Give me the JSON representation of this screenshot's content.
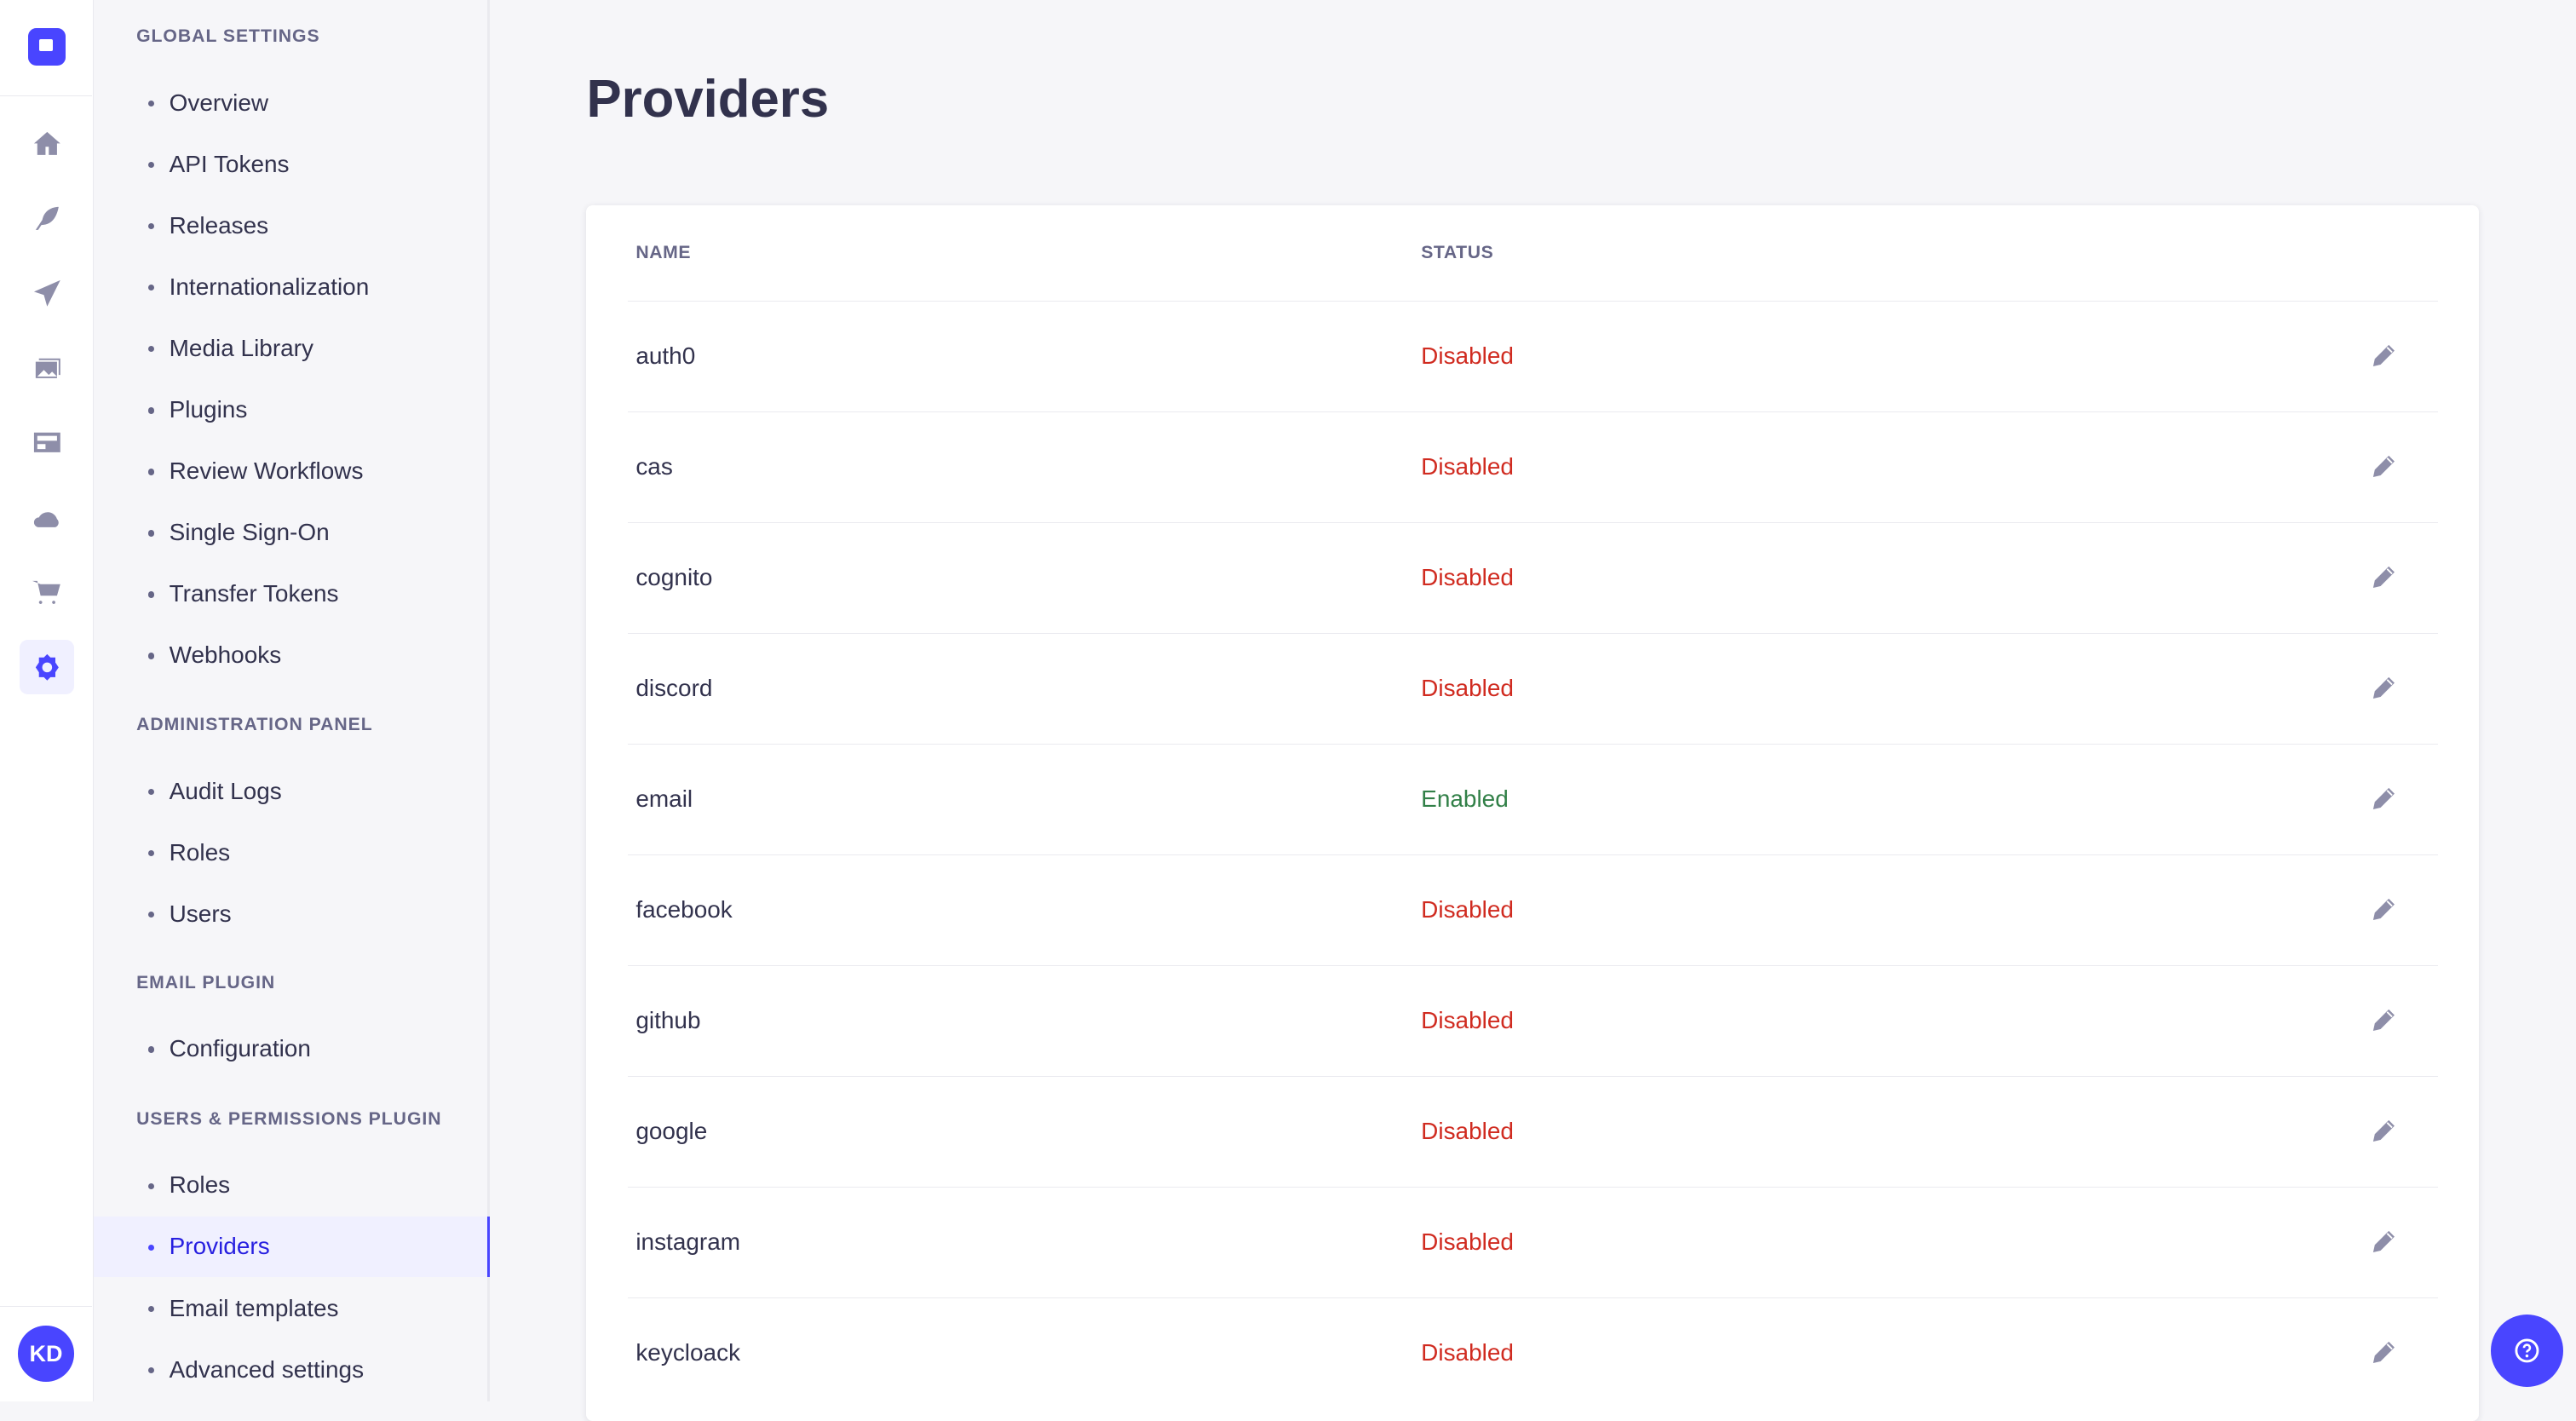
{
  "rail": {
    "icons": [
      "home-icon",
      "content-manager-icon",
      "deploy-icon",
      "media-library-icon",
      "content-type-builder-icon",
      "cloud-icon",
      "marketplace-icon",
      "settings-icon"
    ],
    "avatar": "KD"
  },
  "subnav": {
    "sections": [
      {
        "title": "GLOBAL SETTINGS",
        "items": [
          "Overview",
          "API Tokens",
          "Releases",
          "Internationalization",
          "Media Library",
          "Plugins",
          "Review Workflows",
          "Single Sign-On",
          "Transfer Tokens",
          "Webhooks"
        ]
      },
      {
        "title": "ADMINISTRATION PANEL",
        "items": [
          "Audit Logs",
          "Roles",
          "Users"
        ]
      },
      {
        "title": "EMAIL PLUGIN",
        "items": [
          "Configuration"
        ]
      },
      {
        "title": "USERS & PERMISSIONS PLUGIN",
        "items": [
          "Roles",
          "Providers",
          "Email templates",
          "Advanced settings"
        ]
      }
    ],
    "active": "Providers"
  },
  "page": {
    "title": "Providers"
  },
  "table": {
    "headers": {
      "name": "NAME",
      "status": "STATUS"
    },
    "rows": [
      {
        "name": "auth0",
        "status": "Disabled"
      },
      {
        "name": "cas",
        "status": "Disabled"
      },
      {
        "name": "cognito",
        "status": "Disabled"
      },
      {
        "name": "discord",
        "status": "Disabled"
      },
      {
        "name": "email",
        "status": "Enabled"
      },
      {
        "name": "facebook",
        "status": "Disabled"
      },
      {
        "name": "github",
        "status": "Disabled"
      },
      {
        "name": "google",
        "status": "Disabled"
      },
      {
        "name": "instagram",
        "status": "Disabled"
      },
      {
        "name": "keycloack",
        "status": "Disabled"
      }
    ]
  },
  "colors": {
    "accent": "#4945ff",
    "enabled": "#328048",
    "disabled": "#d02b20"
  }
}
